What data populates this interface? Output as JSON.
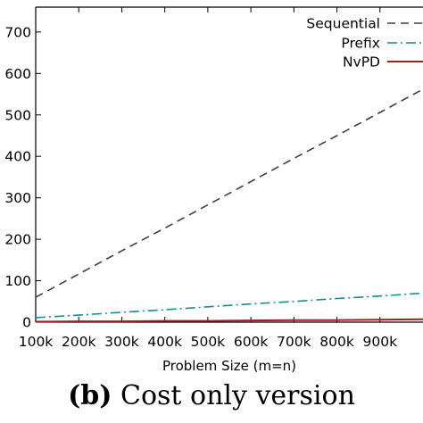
{
  "chart_data": {
    "type": "line",
    "title": "",
    "xlabel": "Problem Size (m=n)",
    "ylabel": "",
    "categories": [
      "100k",
      "200k",
      "300k",
      "400k",
      "500k",
      "600k",
      "700k",
      "800k",
      "900k"
    ],
    "x": [
      100000,
      200000,
      300000,
      400000,
      500000,
      600000,
      700000,
      800000,
      900000,
      1000000
    ],
    "xlim": [
      100000,
      1000000
    ],
    "ylim": [
      0,
      760
    ],
    "yticks": [
      "0",
      "100",
      "200",
      "300",
      "400",
      "500",
      "600",
      "700"
    ],
    "grid": false,
    "legend_position": "top-right",
    "series": [
      {
        "name": "Sequential",
        "color": "#404040",
        "style": "dashed",
        "values": [
          60,
          116,
          172,
          227,
          283,
          339,
          395,
          450,
          506,
          562
        ]
      },
      {
        "name": "Prefix",
        "color": "#148e8e",
        "style": "dash-dot",
        "values": [
          11,
          17,
          24,
          30,
          37,
          44,
          50,
          57,
          63,
          70
        ]
      },
      {
        "name": "NvPD",
        "color": "#a31f1f",
        "style": "solid",
        "values": [
          1,
          2,
          2,
          3,
          3,
          4,
          5,
          5,
          6,
          7
        ]
      }
    ]
  },
  "caption": {
    "tag": "(b)",
    "text": "Cost only version"
  }
}
